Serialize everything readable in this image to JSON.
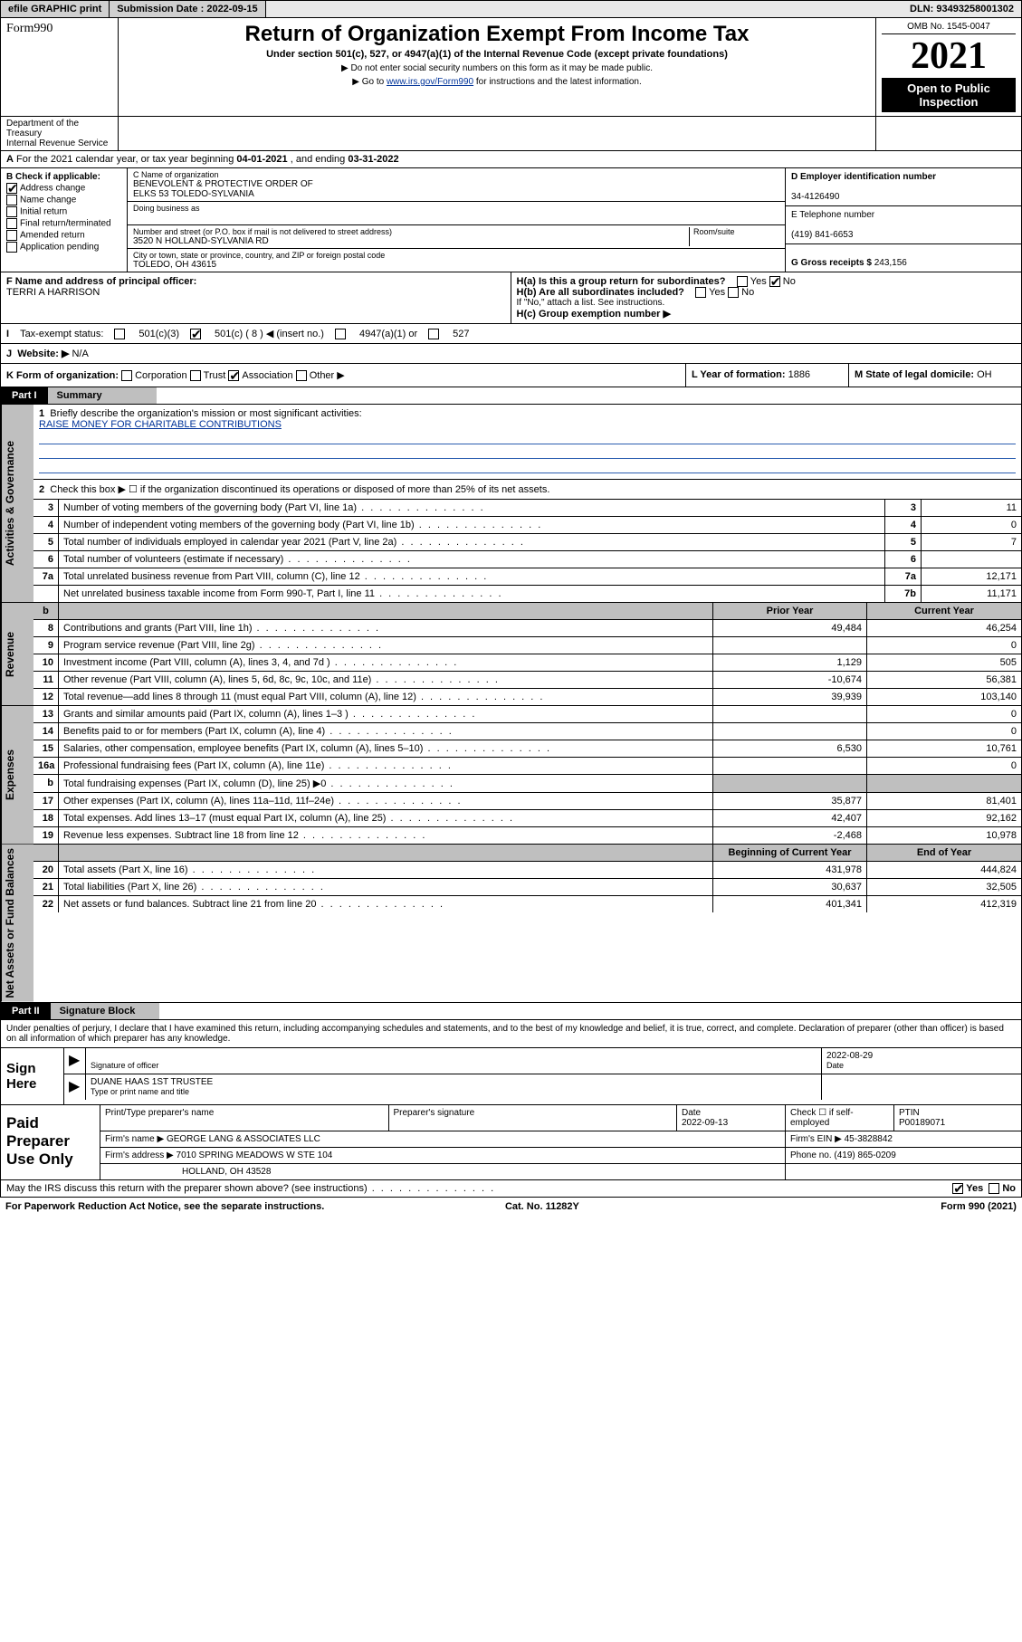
{
  "topbar": {
    "efile": "efile GRAPHIC print",
    "submission_label": "Submission Date :",
    "submission_date": "2022-09-15",
    "dln_label": "DLN:",
    "dln": "93493258001302"
  },
  "header": {
    "form_word": "Form",
    "form_num": "990",
    "title": "Return of Organization Exempt From Income Tax",
    "subtitle": "Under section 501(c), 527, or 4947(a)(1) of the Internal Revenue Code (except private foundations)",
    "warn": "▶ Do not enter social security numbers on this form as it may be made public.",
    "goto_pre": "▶ Go to ",
    "goto_link": "www.irs.gov/Form990",
    "goto_post": " for instructions and the latest information.",
    "omb": "OMB No. 1545-0047",
    "year": "2021",
    "open": "Open to Public Inspection",
    "dept": "Department of the Treasury",
    "irs": "Internal Revenue Service"
  },
  "lineA": {
    "text_pre": "For the 2021 calendar year, or tax year beginning ",
    "begin": "04-01-2021",
    "mid": " , and ending ",
    "end": "03-31-2022"
  },
  "boxB": {
    "label": "B Check if applicable:",
    "addr": "Address change",
    "name": "Name change",
    "init": "Initial return",
    "final": "Final return/terminated",
    "amend": "Amended return",
    "app": "Application pending"
  },
  "boxC": {
    "name_label": "C Name of organization",
    "org1": "BENEVOLENT & PROTECTIVE ORDER OF",
    "org2": "ELKS 53 TOLEDO-SYLVANIA",
    "dba_label": "Doing business as",
    "addr_label": "Number and street (or P.O. box if mail is not delivered to street address)",
    "room_label": "Room/suite",
    "street": "3520 N HOLLAND-SYLVANIA RD",
    "city_label": "City or town, state or province, country, and ZIP or foreign postal code",
    "city": "TOLEDO, OH  43615"
  },
  "boxD": {
    "ein_label": "D Employer identification number",
    "ein": "34-4126490",
    "tel_label": "E Telephone number",
    "tel": "(419) 841-6653",
    "gross_label": "G Gross receipts $",
    "gross": "243,156"
  },
  "rowF": {
    "f_label": "F Name and address of principal officer:",
    "f_name": "TERRI A HARRISON",
    "ha": "H(a)  Is this a group return for subordinates?",
    "ha_ans": "No",
    "hb": "H(b)  Are all subordinates included?",
    "hb_note": "If \"No,\" attach a list. See instructions.",
    "hc": "H(c)  Group exemption number ▶"
  },
  "rowI": {
    "label": "Tax-exempt status:",
    "c3": "501(c)(3)",
    "c_other": "501(c) ( 8 ) ◀ (insert no.)",
    "c4947": "4947(a)(1) or",
    "c527": "527"
  },
  "rowJ": {
    "label": "Website: ▶",
    "val": "N/A"
  },
  "rowK": {
    "k": "K Form of organization:",
    "corp": "Corporation",
    "trust": "Trust",
    "assoc": "Association",
    "other": "Other ▶",
    "l": "L Year of formation:",
    "l_val": "1886",
    "m": "M State of legal domicile:",
    "m_val": "OH"
  },
  "part1": {
    "label": "Part I",
    "title": "Summary"
  },
  "summary": {
    "vlab_gov": "Activities & Governance",
    "l1": "Briefly describe the organization's mission or most significant activities:",
    "l1_text": "RAISE MONEY FOR CHARITABLE CONTRIBUTIONS",
    "l2": "Check this box ▶ ☐  if the organization discontinued its operations or disposed of more than 25% of its net assets.",
    "rows": [
      {
        "n": "3",
        "t": "Number of voting members of the governing body (Part VI, line 1a)",
        "k": "3",
        "v": "11"
      },
      {
        "n": "4",
        "t": "Number of independent voting members of the governing body (Part VI, line 1b)",
        "k": "4",
        "v": "0"
      },
      {
        "n": "5",
        "t": "Total number of individuals employed in calendar year 2021 (Part V, line 2a)",
        "k": "5",
        "v": "7"
      },
      {
        "n": "6",
        "t": "Total number of volunteers (estimate if necessary)",
        "k": "6",
        "v": ""
      },
      {
        "n": "7a",
        "t": "Total unrelated business revenue from Part VIII, column (C), line 12",
        "k": "7a",
        "v": "12,171"
      },
      {
        "n": "",
        "t": "Net unrelated business taxable income from Form 990-T, Part I, line 11",
        "k": "7b",
        "v": "11,171"
      }
    ]
  },
  "fin": {
    "hdr_prior": "Prior Year",
    "hdr_curr": "Current Year",
    "vlab_rev": "Revenue",
    "vlab_exp": "Expenses",
    "vlab_net": "Net Assets or Fund Balances",
    "vlab_b": "b",
    "rev": [
      {
        "n": "8",
        "t": "Contributions and grants (Part VIII, line 1h)",
        "p": "49,484",
        "c": "46,254"
      },
      {
        "n": "9",
        "t": "Program service revenue (Part VIII, line 2g)",
        "p": "",
        "c": "0"
      },
      {
        "n": "10",
        "t": "Investment income (Part VIII, column (A), lines 3, 4, and 7d )",
        "p": "1,129",
        "c": "505"
      },
      {
        "n": "11",
        "t": "Other revenue (Part VIII, column (A), lines 5, 6d, 8c, 9c, 10c, and 11e)",
        "p": "-10,674",
        "c": "56,381"
      },
      {
        "n": "12",
        "t": "Total revenue—add lines 8 through 11 (must equal Part VIII, column (A), line 12)",
        "p": "39,939",
        "c": "103,140"
      }
    ],
    "exp": [
      {
        "n": "13",
        "t": "Grants and similar amounts paid (Part IX, column (A), lines 1–3 )",
        "p": "",
        "c": "0"
      },
      {
        "n": "14",
        "t": "Benefits paid to or for members (Part IX, column (A), line 4)",
        "p": "",
        "c": "0"
      },
      {
        "n": "15",
        "t": "Salaries, other compensation, employee benefits (Part IX, column (A), lines 5–10)",
        "p": "6,530",
        "c": "10,761"
      },
      {
        "n": "16a",
        "t": "Professional fundraising fees (Part IX, column (A), line 11e)",
        "p": "",
        "c": "0"
      },
      {
        "n": "b",
        "t": "Total fundraising expenses (Part IX, column (D), line 25) ▶0",
        "p": "__shade__",
        "c": "__shade__"
      },
      {
        "n": "17",
        "t": "Other expenses (Part IX, column (A), lines 11a–11d, 11f–24e)",
        "p": "35,877",
        "c": "81,401"
      },
      {
        "n": "18",
        "t": "Total expenses. Add lines 13–17 (must equal Part IX, column (A), line 25)",
        "p": "42,407",
        "c": "92,162"
      },
      {
        "n": "19",
        "t": "Revenue less expenses. Subtract line 18 from line 12",
        "p": "-2,468",
        "c": "10,978"
      }
    ],
    "net_hdr_prior": "Beginning of Current Year",
    "net_hdr_curr": "End of Year",
    "net": [
      {
        "n": "20",
        "t": "Total assets (Part X, line 16)",
        "p": "431,978",
        "c": "444,824"
      },
      {
        "n": "21",
        "t": "Total liabilities (Part X, line 26)",
        "p": "30,637",
        "c": "32,505"
      },
      {
        "n": "22",
        "t": "Net assets or fund balances. Subtract line 21 from line 20",
        "p": "401,341",
        "c": "412,319"
      }
    ]
  },
  "part2": {
    "label": "Part II",
    "title": "Signature Block"
  },
  "decl": "Under penalties of perjury, I declare that I have examined this return, including accompanying schedules and statements, and to the best of my knowledge and belief, it is true, correct, and complete. Declaration of preparer (other than officer) is based on all information of which preparer has any knowledge.",
  "sign": {
    "label": "Sign Here",
    "sig_of": "Signature of officer",
    "date": "2022-08-29",
    "date_lab": "Date",
    "name": "DUANE HAAS 1ST TRUSTEE",
    "name_lab": "Type or print name and title"
  },
  "prep": {
    "label": "Paid Preparer Use Only",
    "r1": {
      "a": "Print/Type preparer's name",
      "b": "Preparer's signature",
      "c": "Date",
      "c_val": "2022-09-13",
      "d": "Check ☐ if self-employed",
      "e": "PTIN",
      "e_val": "P00189071"
    },
    "r2a_lab": "Firm's name    ▶",
    "r2a": "GEORGE LANG & ASSOCIATES LLC",
    "r2b_lab": "Firm's EIN ▶",
    "r2b": "45-3828842",
    "r3a_lab": "Firm's address ▶",
    "r3a": "7010 SPRING MEADOWS W STE 104",
    "r3b_lab": "Phone no.",
    "r3b": "(419) 865-0209",
    "r3a2": "HOLLAND, OH  43528"
  },
  "footer": {
    "q": "May the IRS discuss this return with the preparer shown above? (see instructions)",
    "yes": "Yes",
    "no": "No",
    "pra": "For Paperwork Reduction Act Notice, see the separate instructions.",
    "cat": "Cat. No. 11282Y",
    "form": "Form 990 (2021)"
  },
  "colors": {
    "link": "#003399",
    "shade": "#bfbfbf"
  }
}
